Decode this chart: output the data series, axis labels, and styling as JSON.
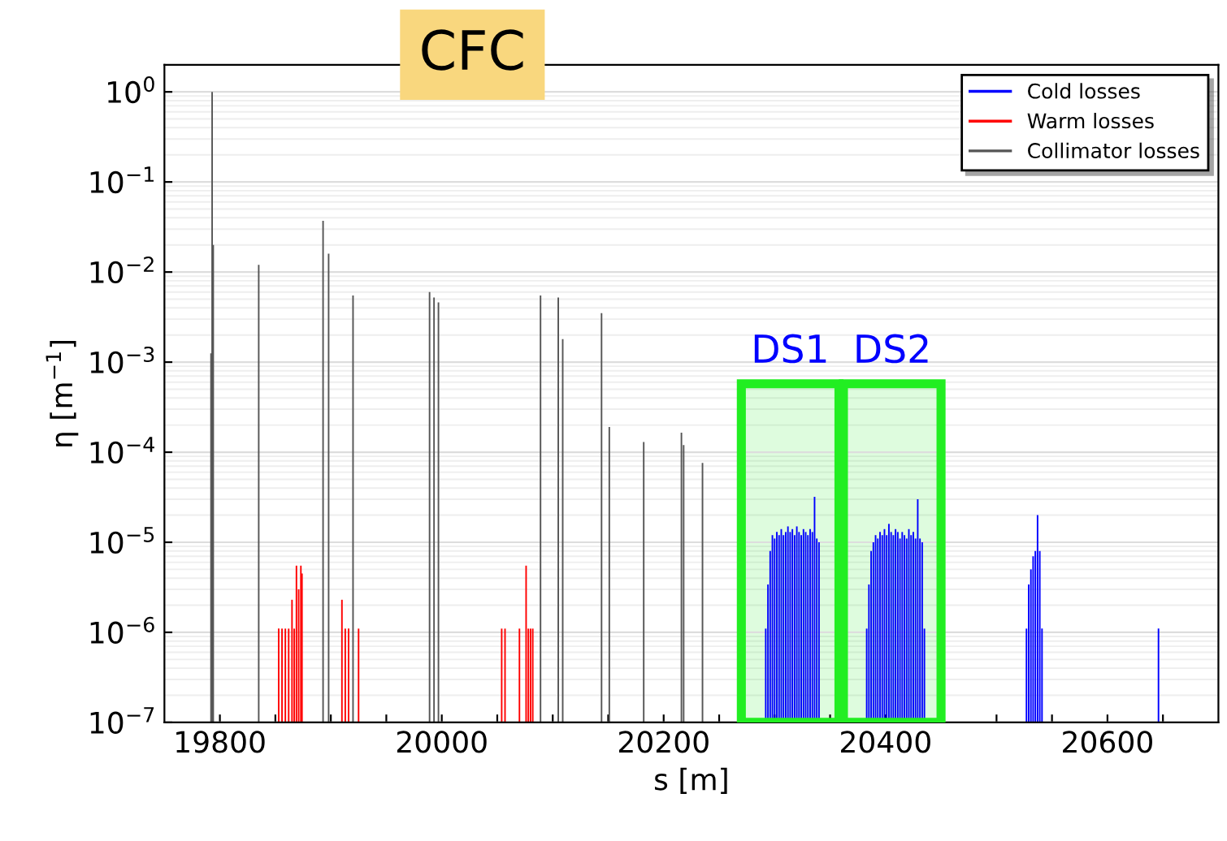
{
  "chart_data": {
    "type": "bar",
    "xlabel": "s [m]",
    "ylabel": "η [m$^{−1}$]",
    "log": "y",
    "grid": "y",
    "legend": "top right",
    "xlim": [
      19750,
      20700
    ],
    "xticks": [
      19800,
      {
        "value": 19850,
        "label": null
      },
      {
        "value": 19900,
        "label": null
      },
      {
        "value": 19950,
        "label": null
      },
      20000,
      {
        "value": 20050,
        "label": null
      },
      {
        "value": 20100,
        "label": null
      },
      {
        "value": 20150,
        "label": null
      },
      20200,
      {
        "value": 20250,
        "label": null
      },
      {
        "value": 20300,
        "label": null
      },
      {
        "value": 20350,
        "label": null
      },
      20400,
      {
        "value": 20450,
        "label": null
      },
      {
        "value": 20500,
        "label": null
      },
      {
        "value": 20550,
        "label": null
      },
      20600,
      {
        "value": 20650,
        "label": null
      }
    ],
    "ylim": [
      1e-07,
      2
    ],
    "yticks": [
      {
        "value": 1e-07,
        "label": "10$^{−7}$"
      },
      {
        "value": 1e-06,
        "label": "10$^{−6}$"
      },
      {
        "value": 1e-05,
        "label": "10$^{−5}$"
      },
      {
        "value": 0.0001,
        "label": "10$^{−4}$"
      },
      {
        "value": 0.001,
        "label": "10$^{−3}$"
      },
      {
        "value": 0.01,
        "label": "10$^{−2}$"
      },
      {
        "value": 0.1,
        "label": "10$^{−1}$"
      },
      {
        "value": 1,
        "label": "10$^{0}$"
      }
    ],
    "annotations": [
      "CFC"
    ],
    "bands": [
      {
        "axis": "x",
        "from": 20270,
        "to": 20358,
        "label": "DS1",
        "color": "#22ee22"
      },
      {
        "axis": "x",
        "from": 20362,
        "to": 20450,
        "label": "DS2",
        "color": "#22ee22"
      }
    ],
    "series": [
      {
        "name": "Cold losses",
        "color": "#0000ff",
        "x": [
          20292,
          20294,
          20296,
          20298,
          20300,
          20302,
          20304,
          20306,
          20308,
          20310,
          20312,
          20314,
          20316,
          20318,
          20320,
          20322,
          20324,
          20326,
          20328,
          20330,
          20332,
          20334,
          20336,
          20338,
          20340,
          20383,
          20385,
          20387,
          20389,
          20391,
          20393,
          20395,
          20397,
          20399,
          20401,
          20403,
          20405,
          20407,
          20409,
          20411,
          20413,
          20415,
          20417,
          20419,
          20421,
          20423,
          20425,
          20427,
          20429,
          20431,
          20433,
          20435,
          20527,
          20529,
          20531,
          20533,
          20535,
          20537,
          20539,
          20541,
          20646
        ],
        "values": [
          1.1e-06,
          3.4e-06,
          8e-06,
          1.2e-05,
          1.1e-05,
          1.3e-05,
          1.2e-05,
          1.4e-05,
          1.2e-05,
          1.3e-05,
          1.5e-05,
          1.3e-05,
          1.4e-05,
          1.2e-05,
          1.5e-05,
          1.3e-05,
          1.2e-05,
          1.4e-05,
          1.3e-05,
          1.2e-05,
          1.4e-05,
          1.3e-05,
          3.2e-05,
          1.1e-05,
          1e-05,
          1.1e-06,
          3.4e-06,
          8e-06,
          1e-05,
          1.2e-05,
          1.1e-05,
          1.3e-05,
          1.2e-05,
          1.4e-05,
          1.2e-05,
          1.6e-05,
          1.3e-05,
          1.2e-05,
          1.4e-05,
          1.3e-05,
          1.1e-05,
          1.3e-05,
          1.2e-05,
          1.1e-05,
          1.4e-05,
          1.2e-05,
          1.3e-05,
          1.1e-05,
          3e-05,
          1.1e-05,
          1e-05,
          1.1e-06,
          1.1e-06,
          3.4e-06,
          5e-06,
          7e-06,
          8e-06,
          2e-05,
          8e-06,
          1.1e-06,
          1.1e-06
        ]
      },
      {
        "name": "Warm losses",
        "color": "#ff0000",
        "x": [
          19853,
          19856,
          19859,
          19862,
          19865,
          19867,
          19869,
          19871,
          19873,
          19874,
          19910,
          19913,
          19916,
          19925,
          20054,
          20057,
          20070,
          20076,
          20078,
          20080,
          20082
        ],
        "values": [
          1.1e-06,
          1.1e-06,
          1.1e-06,
          1.1e-06,
          2.3e-06,
          1.1e-06,
          5.5e-06,
          3e-06,
          5.5e-06,
          4.5e-06,
          2.3e-06,
          1.1e-06,
          1.1e-06,
          1.1e-06,
          1.1e-06,
          1.1e-06,
          1.1e-06,
          5.5e-06,
          1.1e-06,
          1.1e-06,
          1.1e-06
        ]
      },
      {
        "name": "Collimator losses",
        "color": "#555555",
        "x": [
          19792,
          19793,
          19794,
          19835,
          19893,
          19898,
          19920,
          19989,
          19993,
          19997,
          20089,
          20105,
          20109,
          20144,
          20151,
          20182,
          20216,
          20218,
          20235
        ],
        "values": [
          0.00125,
          1.0,
          0.02,
          0.012,
          0.037,
          0.016,
          0.0055,
          0.006,
          0.0052,
          0.0046,
          0.0055,
          0.0052,
          0.0018,
          0.0035,
          0.00019,
          0.00013,
          0.000165,
          0.00012,
          7.6e-05
        ]
      }
    ]
  }
}
